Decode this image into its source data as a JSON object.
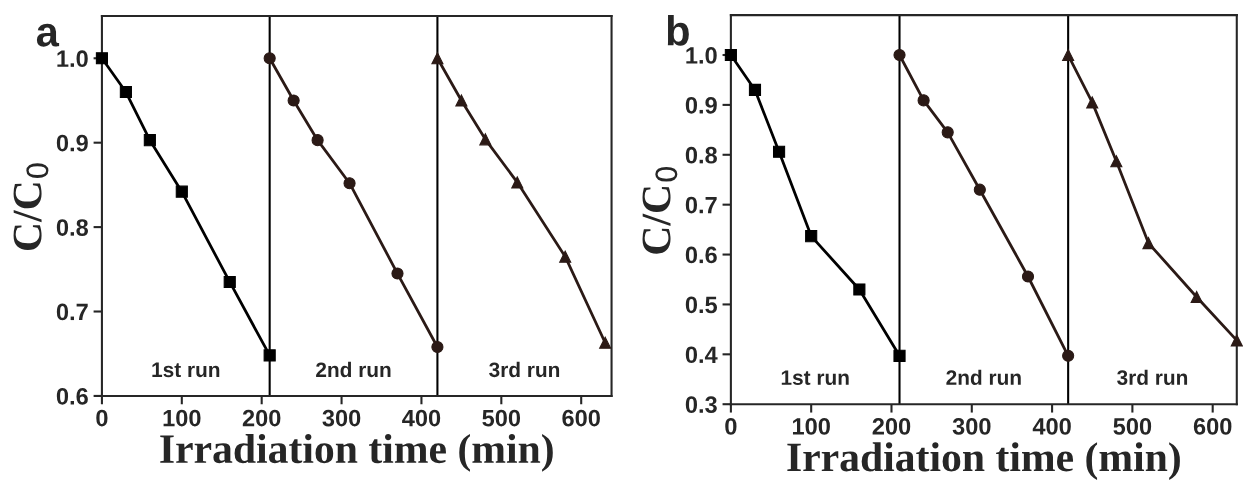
{
  "chart_data": [
    {
      "type": "line",
      "title": "a",
      "xlabel": "Irradiation time (min)",
      "ylabel": "C/C$_{0}$",
      "xlim": [
        0,
        638
      ],
      "xticks": [
        0,
        100,
        200,
        300,
        400,
        500,
        600
      ],
      "ylim": [
        0.6,
        1.05
      ],
      "yticks": [
        0.6,
        0.7,
        0.8,
        0.9,
        {
          "value": 1.0,
          "label": "1.0"
        }
      ],
      "grid": false,
      "line_style": "solid",
      "ref_lines": [
        {
          "axis": "x",
          "value": 210,
          "color": "#000000"
        },
        {
          "axis": "x",
          "value": 420,
          "color": "#000000"
        }
      ],
      "annotations": [
        "1st run",
        "2nd run",
        "3rd run"
      ],
      "series": [
        {
          "x": [
            0,
            30,
            60,
            100,
            160,
            210
          ],
          "values": [
            1.0,
            0.96,
            0.903,
            0.842,
            0.735,
            0.648
          ],
          "color": "#000000",
          "marker": "square"
        },
        {
          "x": [
            210,
            240,
            270,
            310,
            370,
            420
          ],
          "values": [
            1.0,
            0.95,
            0.903,
            0.852,
            0.745,
            0.658
          ],
          "color": "#2b1a16",
          "marker": "circle"
        },
        {
          "x": [
            420,
            450,
            480,
            520,
            580,
            630
          ],
          "values": [
            1.0,
            0.95,
            0.904,
            0.853,
            0.765,
            0.663
          ],
          "color": "#2b1a16",
          "marker": "triangle"
        }
      ]
    },
    {
      "type": "line",
      "title": "b",
      "xlabel": "Irradiation time (min)",
      "ylabel": "C/C$_{0}$",
      "xlim": [
        0,
        630
      ],
      "xticks": [
        0,
        100,
        200,
        300,
        400,
        500,
        600
      ],
      "ylim": [
        0.3,
        1.08
      ],
      "yticks": [
        0.3,
        0.4,
        0.5,
        0.6,
        0.7,
        0.8,
        0.9,
        {
          "value": 1.0,
          "label": "1.0"
        }
      ],
      "grid": false,
      "line_style": "solid",
      "ref_lines": [
        {
          "axis": "x",
          "value": 210,
          "color": "#000000"
        },
        {
          "axis": "x",
          "value": 420,
          "color": "#000000"
        }
      ],
      "annotations": [
        "1st run",
        "2nd run",
        "3rd run"
      ],
      "series": [
        {
          "x": [
            0,
            30,
            60,
            100,
            160,
            210
          ],
          "values": [
            1.0,
            0.93,
            0.806,
            0.637,
            0.53,
            0.397
          ],
          "color": "#000000",
          "marker": "square"
        },
        {
          "x": [
            210,
            240,
            270,
            310,
            370,
            420
          ],
          "values": [
            1.0,
            0.909,
            0.845,
            0.73,
            0.556,
            0.397
          ],
          "color": "#2b1a16",
          "marker": "circle"
        },
        {
          "x": [
            420,
            450,
            480,
            520,
            580,
            630
          ],
          "values": [
            1.0,
            0.905,
            0.787,
            0.623,
            0.515,
            0.428
          ],
          "color": "#2b1a16",
          "marker": "triangle"
        }
      ]
    }
  ]
}
